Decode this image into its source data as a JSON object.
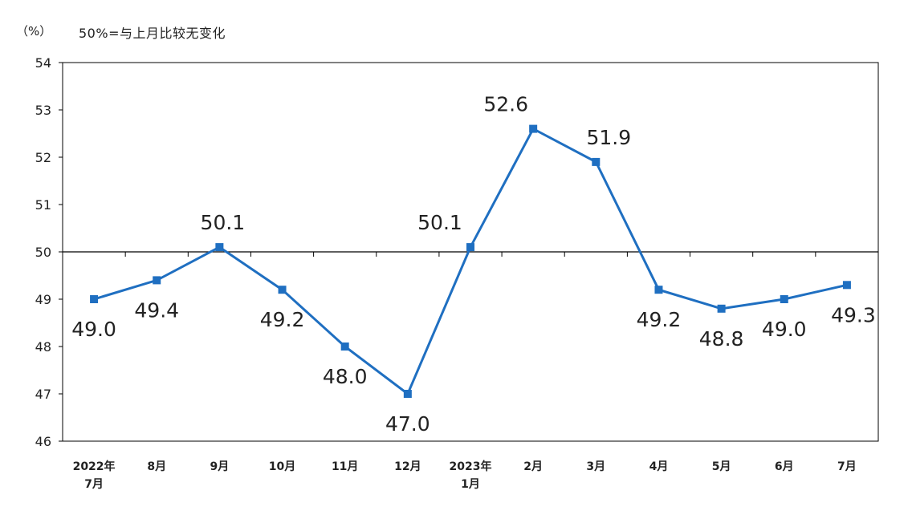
{
  "header": {
    "unit": "（%）",
    "note": "50%=与上月比较无变化"
  },
  "chart_data": {
    "type": "line",
    "title": "",
    "xlabel": "",
    "ylabel": "（%）",
    "ylim": [
      46,
      54
    ],
    "yticks": [
      46,
      47,
      48,
      49,
      50,
      51,
      52,
      53,
      54
    ],
    "reference_line": 50,
    "categories": [
      [
        "2022年",
        "7月"
      ],
      [
        "8月"
      ],
      [
        "9月"
      ],
      [
        "10月"
      ],
      [
        "11月"
      ],
      [
        "12月"
      ],
      [
        "2023年",
        "1月"
      ],
      [
        "2月"
      ],
      [
        "3月"
      ],
      [
        "4月"
      ],
      [
        "5月"
      ],
      [
        "6月"
      ],
      [
        "7月"
      ]
    ],
    "values": [
      49.0,
      49.4,
      50.1,
      49.2,
      48.0,
      47.0,
      50.1,
      52.6,
      51.9,
      49.2,
      48.8,
      49.0,
      49.3
    ],
    "labels": [
      "49.0",
      "49.4",
      "50.1",
      "49.2",
      "48.0",
      "47.0",
      "50.1",
      "52.6",
      "51.9",
      "49.2",
      "48.8",
      "49.0",
      "49.3"
    ],
    "grid": false,
    "legend": "none",
    "colors": {
      "line": "#1f6fc1",
      "marker": "#1f6fc1",
      "axis": "#000000"
    }
  }
}
